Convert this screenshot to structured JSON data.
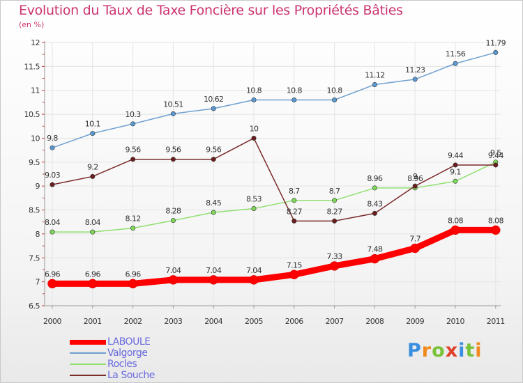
{
  "chart_data": {
    "type": "line",
    "title": "Evolution du Taux de Taxe Foncière sur les Propriétés Bâties",
    "subtitle": "(en %)",
    "categories": [
      "2000",
      "2001",
      "2002",
      "2003",
      "2004",
      "2005",
      "2006",
      "2007",
      "2008",
      "2009",
      "2010",
      "2011"
    ],
    "y_ticks": [
      "6.5",
      "7",
      "7.5",
      "8",
      "8.5",
      "9",
      "9.5",
      "10",
      "10.5",
      "11",
      "11.5",
      "12"
    ],
    "ylim": [
      6.5,
      12
    ],
    "grid": true,
    "legend_position": "bottom-left",
    "series": [
      {
        "name": "LABOULE",
        "color": "#ff0000",
        "values": [
          6.96,
          6.96,
          6.96,
          7.04,
          7.04,
          7.04,
          7.15,
          7.33,
          7.48,
          7.7,
          8.08,
          8.08
        ],
        "labels": [
          "6.96",
          "6.96",
          "6.96",
          "7.04",
          "7.04",
          "7.04",
          "7.15",
          "7.33",
          "7.48",
          "7.7",
          "8.08",
          "8.08"
        ]
      },
      {
        "name": "Valgorge",
        "color": "#6fa0d0",
        "values": [
          9.8,
          10.1,
          10.3,
          10.51,
          10.62,
          10.8,
          10.8,
          10.8,
          11.12,
          11.23,
          11.56,
          11.79
        ],
        "labels": [
          "9.8",
          "10.1",
          "10.3",
          "10.51",
          "10.62",
          "10.8",
          "10.8",
          "10.8",
          "11.12",
          "11.23",
          "11.56",
          "11.79"
        ]
      },
      {
        "name": "Rocles",
        "color": "#90e070",
        "values": [
          8.04,
          8.04,
          8.12,
          8.28,
          8.45,
          8.53,
          8.7,
          8.7,
          8.96,
          8.96,
          9.1,
          9.5
        ],
        "labels": [
          "8.04",
          "8.04",
          "8.12",
          "8.28",
          "8.45",
          "8.53",
          "8.7",
          "8.7",
          "8.96",
          "8.96",
          "9.1",
          "9.5"
        ]
      },
      {
        "name": "La Souche",
        "color": "#7a2a2a",
        "values": [
          9.03,
          9.2,
          9.56,
          9.56,
          9.56,
          10,
          8.27,
          8.27,
          8.43,
          9,
          9.44,
          9.44
        ],
        "labels": [
          "9.03",
          "9.2",
          "9.56",
          "9.56",
          "9.56",
          "10",
          "8.27",
          "8.27",
          "8.43",
          "9",
          "9.44",
          "9.44"
        ]
      }
    ]
  },
  "logo": {
    "text": "Proxiti",
    "letters": [
      "P",
      "r",
      "o",
      "x",
      "i",
      "t",
      "i"
    ]
  }
}
